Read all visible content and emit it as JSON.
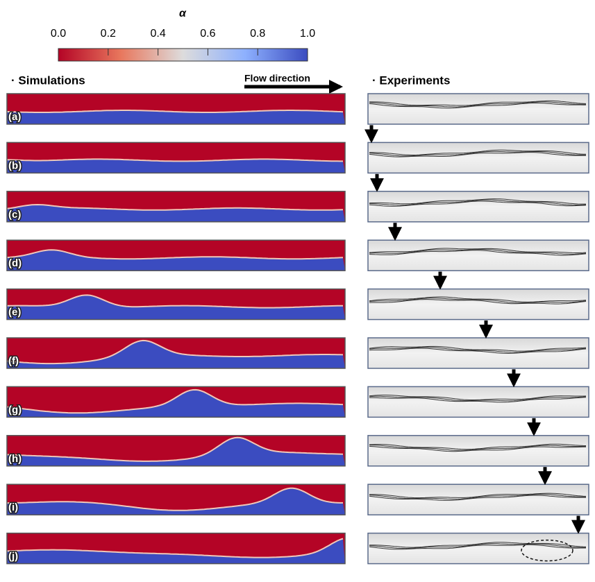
{
  "colorbar": {
    "label": "α",
    "lim": [
      0,
      1
    ],
    "ticks": [
      {
        "value": 0,
        "label": "0.0"
      },
      {
        "value": 0.2,
        "label": "0.2"
      },
      {
        "value": 0.4,
        "label": "0.4"
      },
      {
        "value": 0.6,
        "label": "0.6"
      },
      {
        "value": 0.8,
        "label": "0.8"
      },
      {
        "value": 1,
        "label": "1.0"
      }
    ]
  },
  "simulations": {
    "title": "· Simulations",
    "flow": "Flow direction"
  },
  "experiments": {
    "title": "· Experiments"
  },
  "panels": [
    {
      "label": "(a)"
    },
    {
      "label": "(b)"
    },
    {
      "label": "(c)"
    },
    {
      "label": "(d)"
    },
    {
      "label": "(e)"
    },
    {
      "label": "(f)"
    },
    {
      "label": "(g)"
    },
    {
      "label": "(h)"
    },
    {
      "label": "(i)"
    },
    {
      "label": "(j)"
    }
  ]
}
